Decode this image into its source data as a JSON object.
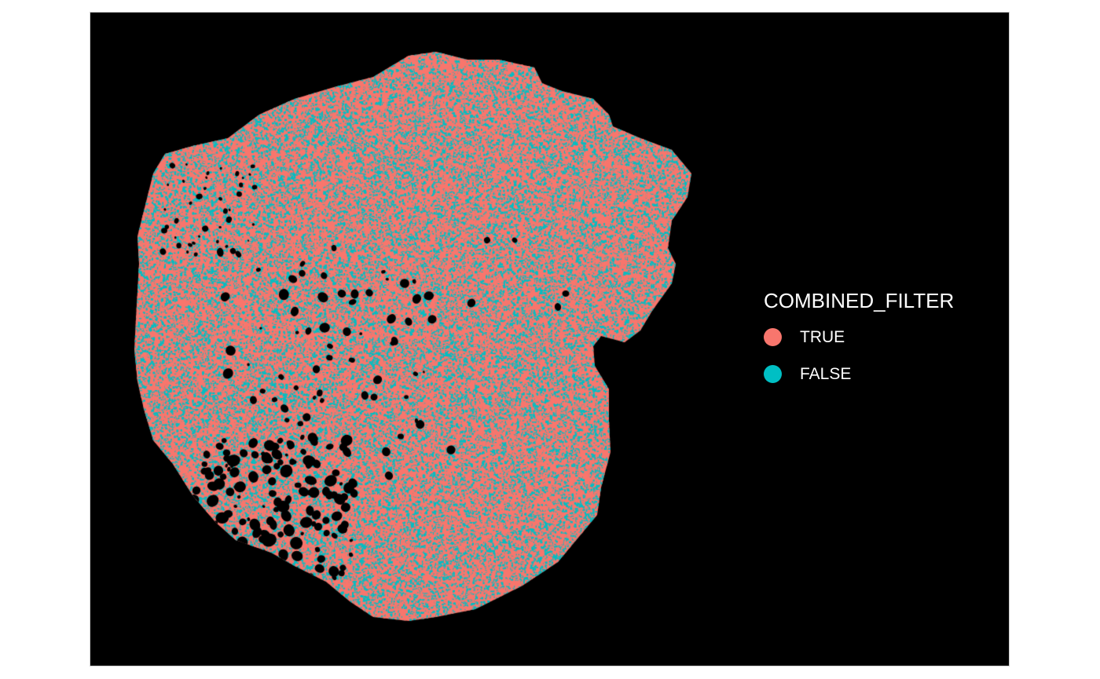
{
  "chart_data": {
    "type": "scatter",
    "title": "",
    "xlabel": "",
    "ylabel": "",
    "grid": false,
    "background": "#000000",
    "legend": {
      "title": "COMBINED_FILTER",
      "placement": "right",
      "entries": [
        {
          "label": "TRUE",
          "color": "#F8766D"
        },
        {
          "label": "FALSE",
          "color": "#00BFC4"
        }
      ]
    },
    "series": [
      {
        "name": "TRUE",
        "color": "#F8766D",
        "approx_share": 0.6
      },
      {
        "name": "FALSE",
        "color": "#00BFC4",
        "approx_share": 0.4
      }
    ]
  }
}
